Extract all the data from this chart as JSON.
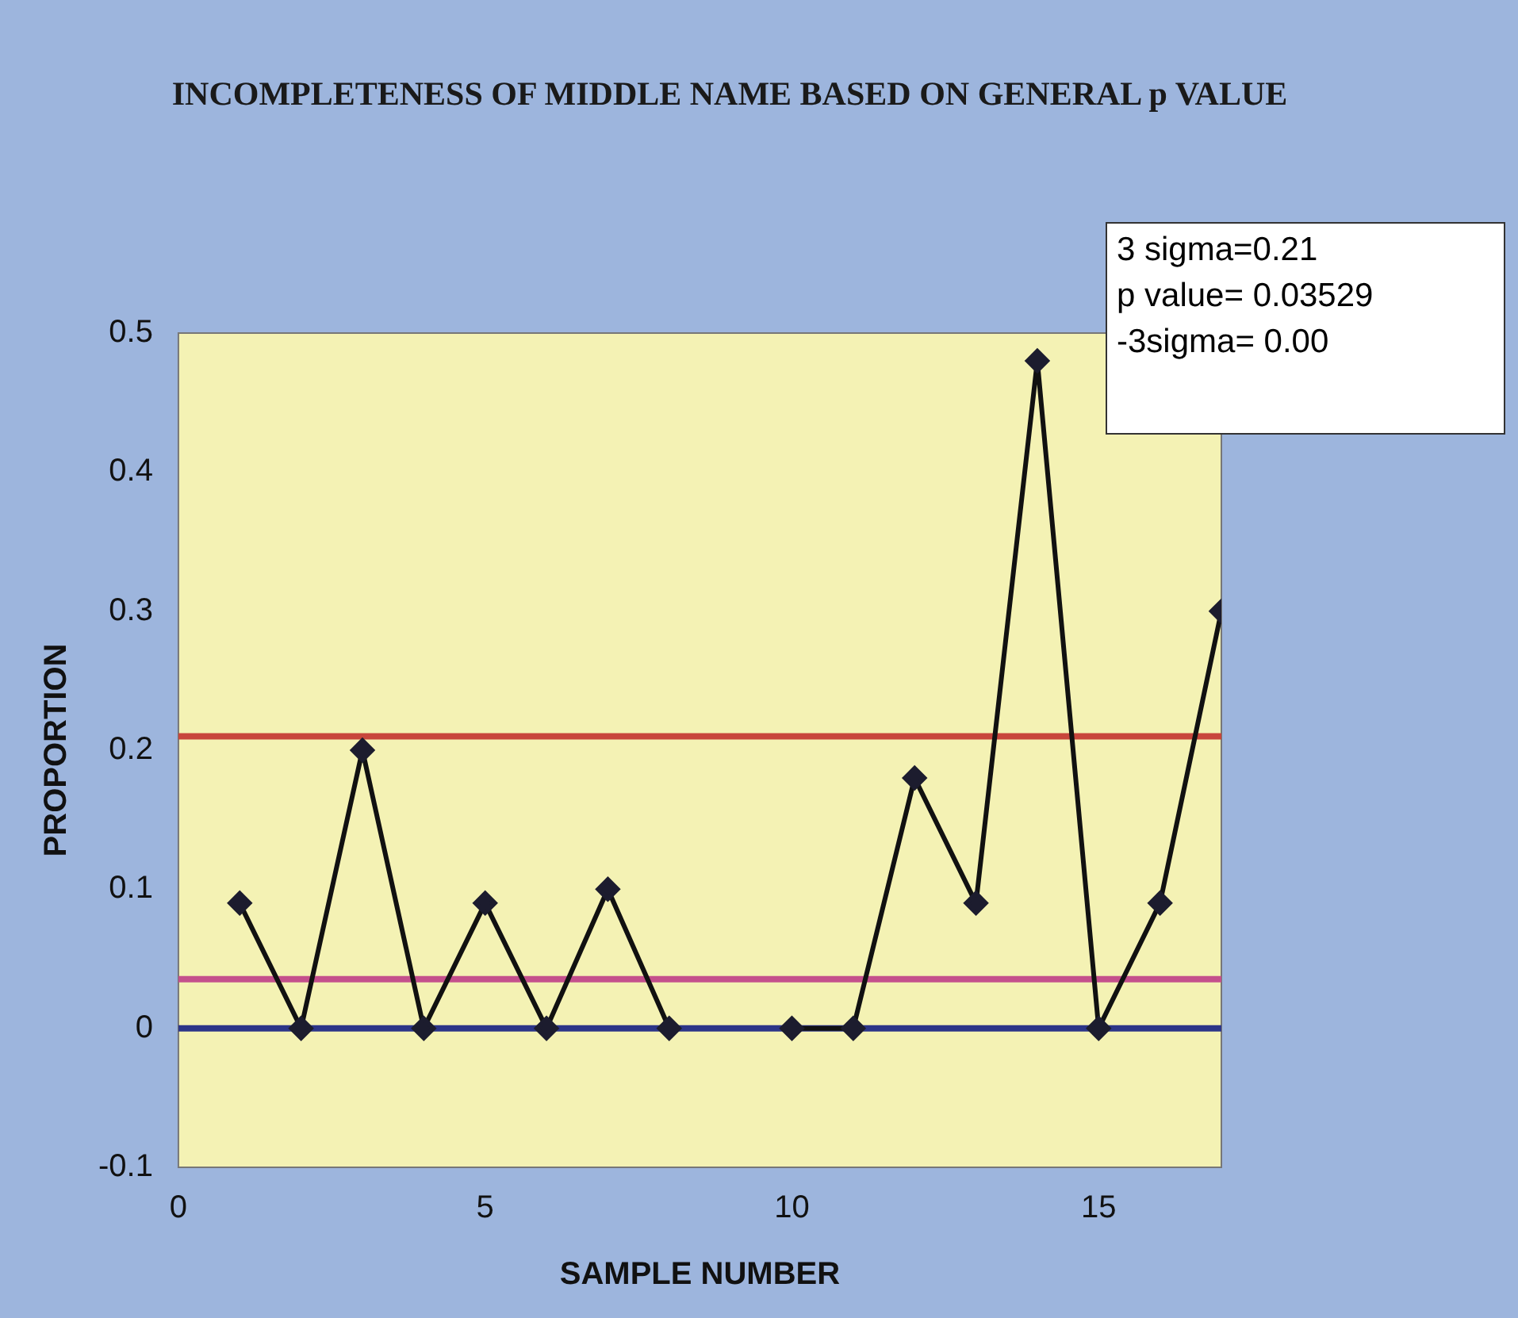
{
  "chart_data": {
    "type": "line",
    "title": "INCOMPLETENESS OF MIDDLE NAME BASED ON GENERAL p VALUE",
    "xlabel": "SAMPLE NUMBER",
    "ylabel": "PROPORTION",
    "x": [
      1,
      2,
      3,
      4,
      5,
      6,
      7,
      8,
      9,
      10,
      11,
      12,
      13,
      14,
      15,
      16,
      17
    ],
    "series": [
      {
        "color": "#1c1c2e",
        "values": [
          0.09,
          0,
          0.2,
          0,
          0.09,
          0,
          0.1,
          0,
          null,
          0,
          0,
          0.18,
          0.09,
          0.48,
          0,
          0.09,
          0.3
        ]
      }
    ],
    "xlim": [
      0,
      17
    ],
    "xticks": [
      0,
      5,
      10,
      15
    ],
    "ylim": [
      -0.1,
      0.5
    ],
    "yticks": [
      -0.1,
      0,
      0.1,
      0.2,
      0.3,
      0.4,
      0.5
    ],
    "ref_lines": [
      {
        "axis": "y",
        "value": 0.21,
        "color": "#c8463c"
      },
      {
        "axis": "y",
        "value": 0.03529,
        "color": "#c4508c"
      },
      {
        "axis": "y",
        "value": 0,
        "color": "#2c3588"
      }
    ],
    "annotations": [
      "3 sigma=0.21",
      "p value= 0.03529",
      "-3sigma= 0.00"
    ],
    "marker": "diamond",
    "grid": false,
    "legend": false
  }
}
